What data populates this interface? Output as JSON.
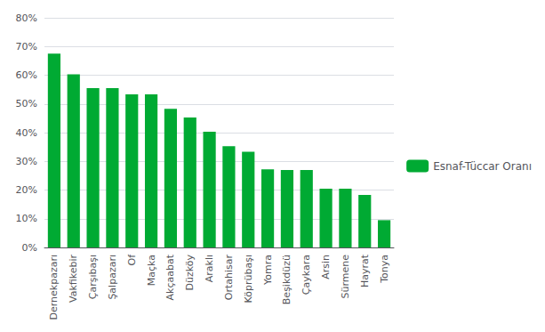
{
  "chart_data": {
    "type": "bar",
    "categories": [
      "Dernekpazarı",
      "Vakfikebir",
      "Çarşıbaşı",
      "Şalpazarı",
      "Of",
      "Maçka",
      "Akçaabat",
      "Düzköy",
      "Araklı",
      "Ortahisar",
      "Köprübaşı",
      "Yomra",
      "Beşikdüzü",
      "Çaykara",
      "Arsin",
      "Sürmene",
      "Hayrat",
      "Tonya"
    ],
    "series": [
      {
        "name": "Esnaf-Tüccar Oranı",
        "color": "#00aa33",
        "values": [
          0.675,
          0.603,
          0.555,
          0.555,
          0.533,
          0.533,
          0.483,
          0.453,
          0.403,
          0.353,
          0.333,
          0.272,
          0.27,
          0.27,
          0.205,
          0.205,
          0.183,
          0.095
        ]
      }
    ],
    "ylim": [
      0,
      0.8
    ],
    "yticks": [
      {
        "value": 0.0,
        "label": "0%"
      },
      {
        "value": 0.1,
        "label": "10%"
      },
      {
        "value": 0.2,
        "label": "20%"
      },
      {
        "value": 0.3,
        "label": "30%"
      },
      {
        "value": 0.4,
        "label": "40%"
      },
      {
        "value": 0.5,
        "label": "50%"
      },
      {
        "value": 0.6,
        "label": "60%"
      },
      {
        "value": 0.7,
        "label": "70%"
      },
      {
        "value": 0.8,
        "label": "80%"
      }
    ],
    "grid": true,
    "legend": "right"
  }
}
